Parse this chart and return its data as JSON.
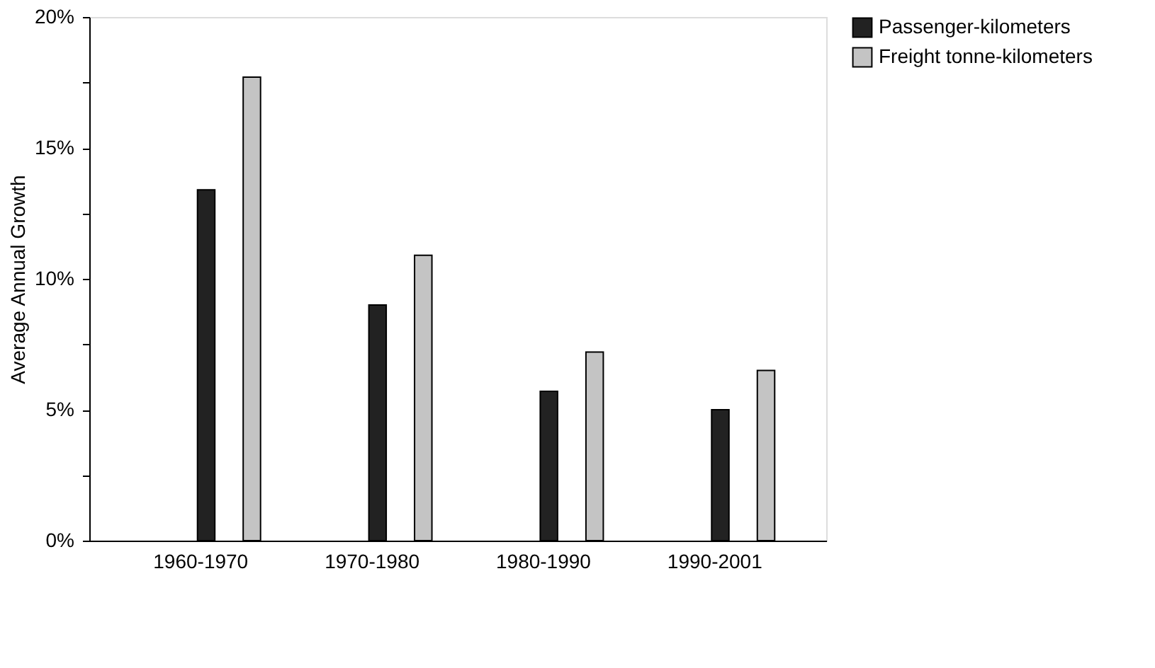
{
  "chart_data": {
    "type": "bar",
    "ylabel": "Average Annual Growth",
    "categories": [
      "1960-1970",
      "1970-1980",
      "1980-1990",
      "1990-2001"
    ],
    "series": [
      {
        "name": "Passenger-kilometers",
        "color": "#222222",
        "values": [
          13.4,
          9.0,
          5.7,
          5.0
        ]
      },
      {
        "name": "Freight tonne-kilometers",
        "color": "#c4c4c4",
        "values": [
          17.7,
          10.9,
          7.2,
          6.5
        ]
      }
    ],
    "ylim": [
      0,
      20
    ],
    "yticks": [
      {
        "value": 0,
        "label": "0%"
      },
      {
        "value": 2.5,
        "label": null
      },
      {
        "value": 5,
        "label": "5%"
      },
      {
        "value": 7.5,
        "label": null
      },
      {
        "value": 10,
        "label": "10%"
      },
      {
        "value": 12.5,
        "label": null
      },
      {
        "value": 15,
        "label": "15%"
      },
      {
        "value": 17.5,
        "label": null
      },
      {
        "value": 20,
        "label": "20%"
      }
    ],
    "grid": false,
    "legend": "top right"
  }
}
